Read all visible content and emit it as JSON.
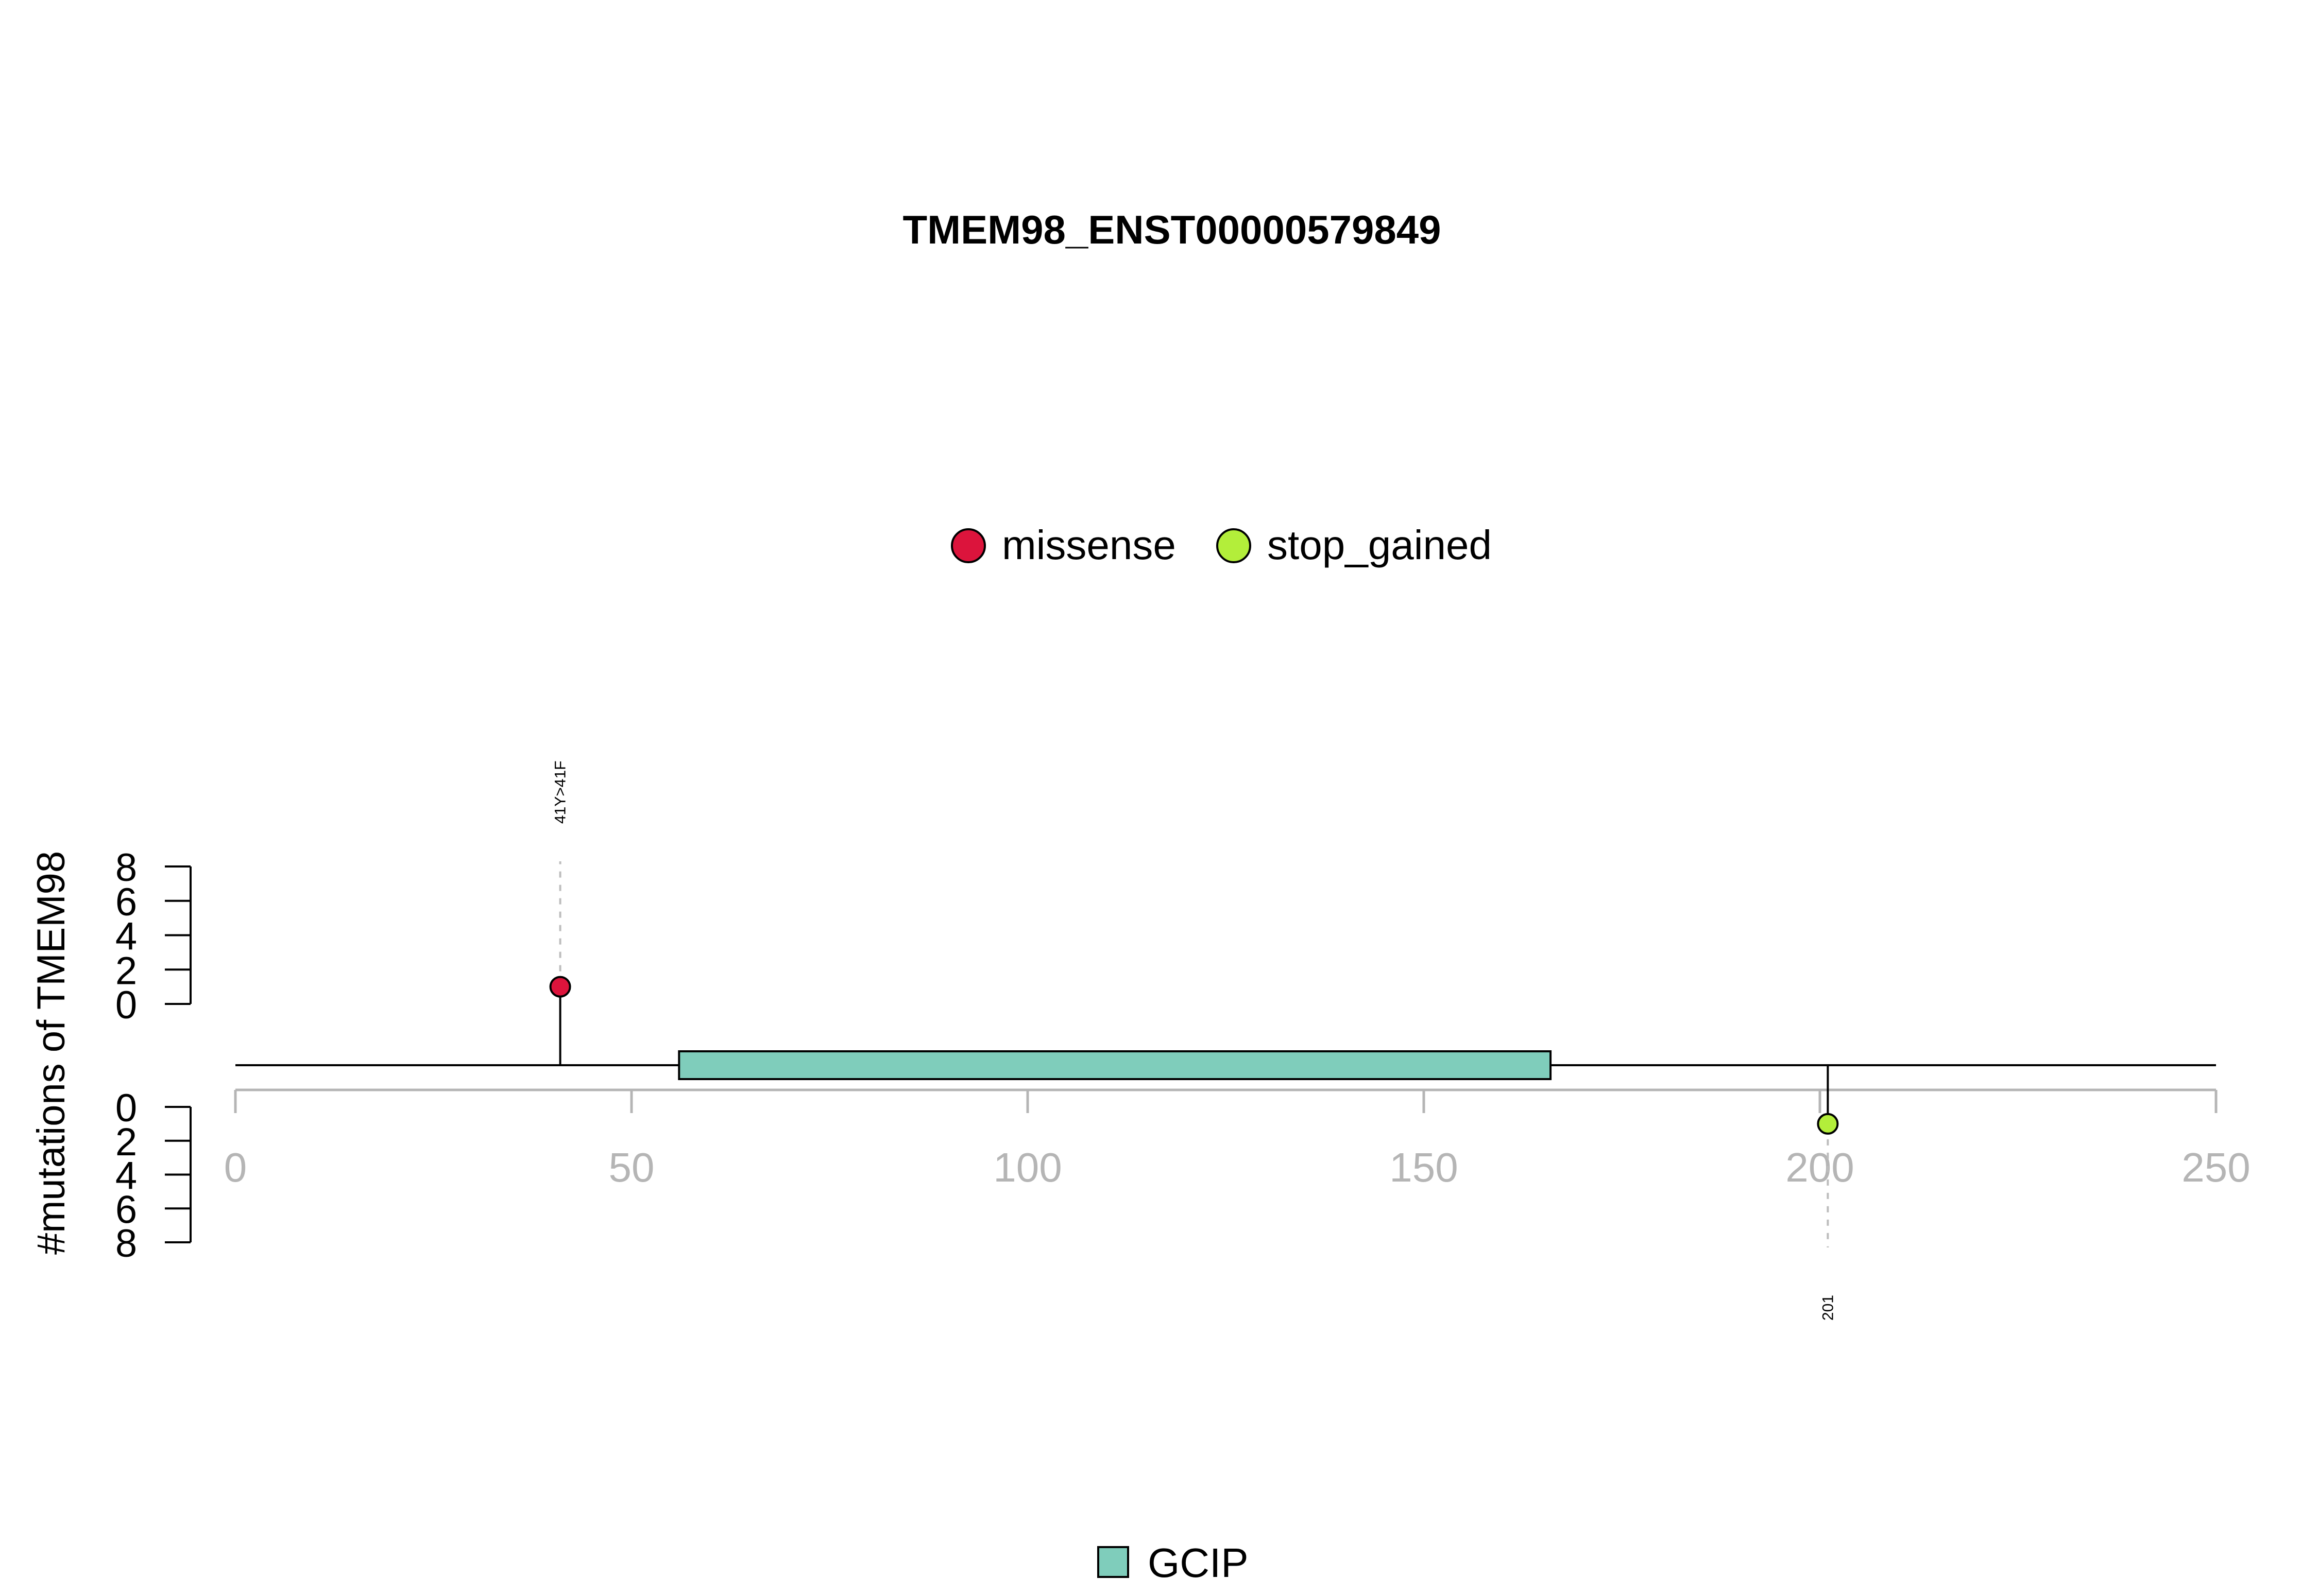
{
  "chart_data": {
    "type": "lollipop",
    "title": "TMEM98_ENST00000579849",
    "ylabel": "#mutations of TMEM98",
    "xlim": [
      0,
      250
    ],
    "x_ticks": [
      0,
      50,
      100,
      150,
      200,
      250
    ],
    "y_ticks": [
      0,
      2,
      4,
      6,
      8
    ],
    "ylim": [
      0,
      8
    ],
    "legend_top": [
      {
        "name": "missense",
        "color": "#DC143C"
      },
      {
        "name": "stop_gained",
        "color": "#B3EE3A"
      }
    ],
    "domains": [
      {
        "name": "GCIP",
        "start": 56,
        "end": 166,
        "color": "#7FCDBB"
      }
    ],
    "mutations": [
      {
        "position": 41,
        "count": 1,
        "type": "missense",
        "side": "top",
        "label": "41Y>41F",
        "color": "#DC143C"
      },
      {
        "position": 201,
        "count": 1,
        "type": "stop_gained",
        "side": "bottom",
        "label": "201",
        "color": "#B3EE3A"
      }
    ],
    "legend_bottom": [
      {
        "name": "GCIP",
        "color": "#7FCDBB"
      }
    ]
  }
}
